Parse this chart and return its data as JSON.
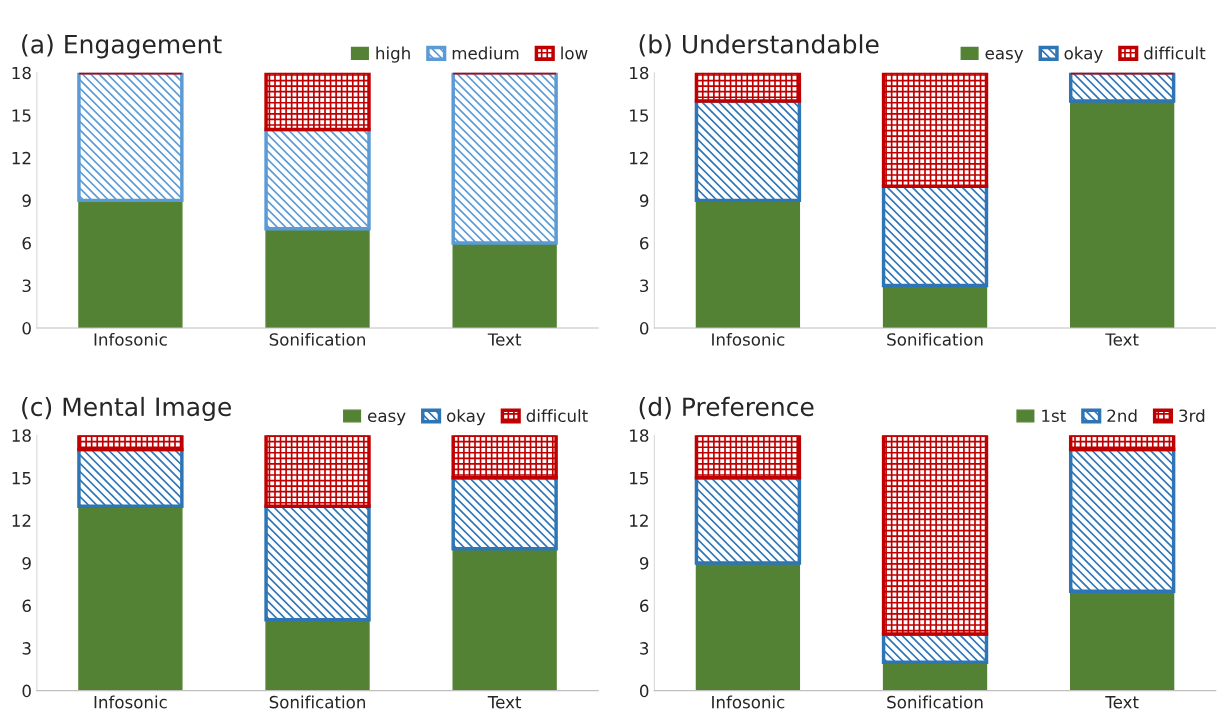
{
  "chart_data": [
    {
      "type": "bar",
      "stacked": true,
      "title": "(a) Engagement",
      "categories": [
        "Infosonic",
        "Sonification",
        "Text"
      ],
      "ylim": [
        0,
        18
      ],
      "yticks": [
        0,
        3,
        6,
        9,
        12,
        15,
        18
      ],
      "legend": "top right",
      "grid": false,
      "series": [
        {
          "name": "high",
          "color": "#548235",
          "values": [
            9,
            7,
            6
          ]
        },
        {
          "name": "medium",
          "color": "#5b9bd5",
          "values": [
            9,
            7,
            12
          ]
        },
        {
          "name": "low",
          "color": "#c00000",
          "values": [
            0,
            4,
            0
          ]
        }
      ]
    },
    {
      "type": "bar",
      "stacked": true,
      "title": "(b) Understandable",
      "categories": [
        "Infosonic",
        "Sonification",
        "Text"
      ],
      "ylim": [
        0,
        18
      ],
      "yticks": [
        0,
        3,
        6,
        9,
        12,
        15,
        18
      ],
      "legend": "top right",
      "grid": false,
      "series": [
        {
          "name": "easy",
          "color": "#548235",
          "values": [
            9,
            3,
            16
          ]
        },
        {
          "name": "okay",
          "color": "#2e75b6",
          "values": [
            7,
            7,
            2
          ]
        },
        {
          "name": "difficult",
          "color": "#c00000",
          "values": [
            2,
            8,
            0
          ]
        }
      ]
    },
    {
      "type": "bar",
      "stacked": true,
      "title": "(c) Mental Image",
      "categories": [
        "Infosonic",
        "Sonification",
        "Text"
      ],
      "ylim": [
        0,
        18
      ],
      "yticks": [
        0,
        3,
        6,
        9,
        12,
        15,
        18
      ],
      "legend": "top right",
      "grid": false,
      "series": [
        {
          "name": "easy",
          "color": "#548235",
          "values": [
            13,
            5,
            10
          ]
        },
        {
          "name": "okay",
          "color": "#2e75b6",
          "values": [
            4,
            8,
            5
          ]
        },
        {
          "name": "difficult",
          "color": "#c00000",
          "values": [
            1,
            5,
            3
          ]
        }
      ]
    },
    {
      "type": "bar",
      "stacked": true,
      "title": "(d) Preference",
      "categories": [
        "Infosonic",
        "Sonification",
        "Text"
      ],
      "ylim": [
        0,
        18
      ],
      "yticks": [
        0,
        3,
        6,
        9,
        12,
        15,
        18
      ],
      "legend": "top right",
      "grid": false,
      "series": [
        {
          "name": "1st",
          "color": "#548235",
          "values": [
            9,
            2,
            7
          ]
        },
        {
          "name": "2nd",
          "color": "#2e75b6",
          "values": [
            6,
            2,
            10
          ]
        },
        {
          "name": "3rd",
          "color": "#c00000",
          "values": [
            3,
            14,
            1
          ]
        }
      ]
    }
  ]
}
